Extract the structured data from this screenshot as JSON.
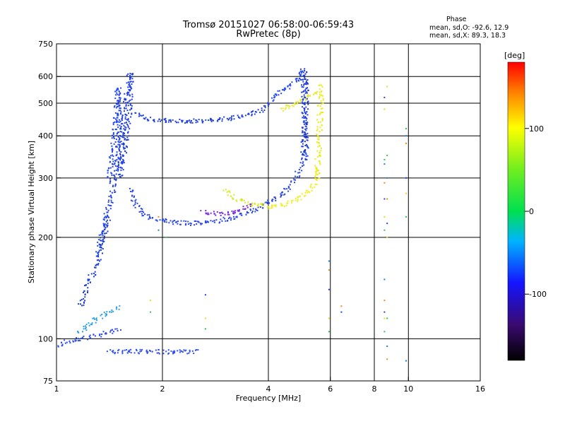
{
  "header": {
    "title": "Tromsø 20151027 06:58:00-06:59:43",
    "subtitle": "RwPretec (8p)",
    "phase_title": "Phase",
    "phase_o": "mean, sd,O: -92.6, 12.9",
    "phase_x": "mean, sd,X: 89.3, 18.3"
  },
  "colorbar": {
    "unit": "[deg]",
    "min": -180,
    "max": 180,
    "ticks": [
      100,
      0,
      -100
    ],
    "tick_labels": [
      "100",
      "0",
      "-100"
    ]
  },
  "chart_data": {
    "type": "scatter",
    "xlabel": "Frequency [MHz]",
    "ylabel": "Stationary phase Virtual Height [km]",
    "xscale": "log",
    "yscale": "log",
    "xlim": [
      1,
      16
    ],
    "ylim": [
      75,
      750
    ],
    "xticks": [
      1,
      2,
      4,
      6,
      8,
      10,
      16
    ],
    "xtick_labels": [
      "1",
      "2",
      "4",
      "6",
      "8",
      "10",
      "16"
    ],
    "yticks": [
      75,
      100,
      200,
      300,
      400,
      500,
      600,
      750
    ],
    "ytick_labels": [
      "75",
      "100",
      "200",
      "300",
      "400",
      "500",
      "600",
      "750"
    ],
    "xgrid": [
      2,
      4,
      6,
      8,
      10
    ],
    "ygrid": [
      100,
      200,
      300,
      400,
      500,
      600
    ],
    "series": [
      {
        "traces": [
          {
            "f": [
              1.3,
              1.33,
              1.36,
              1.39,
              1.42,
              1.45,
              1.47,
              1.49,
              1.5,
              1.5,
              1.49,
              1.46,
              1.42,
              1.4
            ],
            "h": [
              180,
              200,
              220,
              240,
              260,
              280,
              310,
              360,
              420,
              500,
              560,
              400,
              340,
              290
            ],
            "color": "#2244ee"
          },
          {
            "f": [
              1.5,
              1.53,
              1.56,
              1.58,
              1.6,
              1.61,
              1.62,
              1.61,
              1.59,
              1.56,
              1.53,
              1.5
            ],
            "h": [
              300,
              330,
              370,
              420,
              480,
              540,
              600,
              620,
              560,
              470,
              380,
              320
            ],
            "color": "#1e3ce6"
          },
          {
            "f": [
              1.16,
              1.18,
              1.21,
              1.24,
              1.27,
              1.3,
              1.33,
              1.36,
              1.4
            ],
            "h": [
              125,
              130,
              140,
              150,
              160,
              170,
              185,
              205,
              230
            ],
            "color": "#1a3bd8"
          },
          {
            "f": [
              1.0,
              1.05,
              1.1,
              1.15,
              1.2,
              1.25,
              1.3,
              1.35,
              1.4,
              1.45,
              1.5
            ],
            "h": [
              95,
              98,
              99,
              100,
              101,
              102,
              103,
              104,
              105,
              106,
              108
            ],
            "color": "#2f4fe8"
          },
          {
            "f": [
              1.15,
              1.2,
              1.25,
              1.3,
              1.35,
              1.4,
              1.45,
              1.5
            ],
            "h": [
              105,
              108,
              112,
              115,
              118,
              120,
              122,
              125
            ],
            "color": "#2fa0e0"
          },
          {
            "f": [
              1.4,
              1.45,
              1.5,
              1.55,
              1.6,
              1.65,
              1.7,
              1.8,
              1.9,
              2.0,
              2.1,
              2.2,
              2.3,
              2.4,
              2.5
            ],
            "h": [
              92,
              92,
              92,
              92,
              92,
              92,
              92,
              92,
              92,
              92,
              92,
              92,
              92,
              92,
              92
            ],
            "color": "#3050e8"
          },
          {
            "f": [
              1.65,
              1.7,
              1.75,
              1.8,
              1.9,
              2.0,
              2.1,
              2.2,
              2.4,
              2.6,
              2.8,
              3.0,
              3.2,
              3.4,
              3.6,
              3.8,
              3.9,
              4.0
            ],
            "h": [
              470,
              460,
              455,
              450,
              448,
              446,
              445,
              444,
              444,
              445,
              447,
              450,
              455,
              460,
              468,
              480,
              490,
              500
            ],
            "color": "#1f3fe0"
          },
          {
            "f": [
              1.62,
              1.65,
              1.7,
              1.75,
              1.8,
              1.9,
              2.0,
              2.2,
              2.4,
              2.6,
              2.8,
              3.0,
              3.2,
              3.4,
              3.6,
              3.8,
              4.0,
              4.2,
              4.4,
              4.6,
              4.8,
              5.0
            ],
            "h": [
              280,
              260,
              245,
              237,
              232,
              228,
              225,
              222,
              221,
              222,
              224,
              227,
              231,
              236,
              242,
              248,
              255,
              263,
              272,
              285,
              305,
              340
            ],
            "color": "#2a46e6"
          },
          {
            "f": [
              4.0,
              4.15,
              4.3,
              4.5,
              4.7,
              4.85,
              5.0,
              5.03,
              5.05,
              5.06,
              5.08,
              5.1
            ],
            "h": [
              500,
              520,
              540,
              560,
              580,
              600,
              630,
              550,
              480,
              430,
              380,
              340
            ],
            "color": "#2244ee"
          },
          {
            "f": [
              5.0,
              5.02,
              5.05,
              5.07,
              5.09,
              5.1,
              5.12
            ],
            "h": [
              340,
              380,
              430,
              480,
              540,
              600,
              640
            ],
            "color": "#1b36d0"
          },
          {
            "f": [
              3.0,
              3.1,
              3.2,
              3.3,
              3.4,
              3.5,
              3.6,
              3.7,
              3.8,
              3.9
            ],
            "h": [
              280,
              270,
              262,
              258,
              255,
              253,
              252,
              251,
              250,
              250
            ],
            "color": "#d8e82a"
          },
          {
            "f": [
              3.9,
              4.1,
              4.3,
              4.5,
              4.7,
              4.9,
              5.1,
              5.3,
              5.45,
              5.55
            ],
            "h": [
              245,
              247,
              250,
              254,
              258,
              264,
              272,
              285,
              300,
              320
            ],
            "color": "#f0ee20"
          },
          {
            "f": [
              5.45,
              5.5,
              5.53,
              5.56,
              5.58,
              5.6,
              5.62,
              5.64
            ],
            "h": [
              300,
              330,
              370,
              410,
              450,
              500,
              540,
              580
            ],
            "color": "#ecec1c"
          },
          {
            "f": [
              4.3,
              4.5,
              4.7,
              4.9,
              5.1,
              5.3,
              5.5
            ],
            "h": [
              480,
              490,
              500,
              510,
              520,
              530,
              540
            ],
            "color": "#e8ea28"
          },
          {
            "f": [
              2.6,
              2.8,
              3.0,
              3.2,
              3.4,
              3.6
            ],
            "h": [
              238,
              236,
              237,
              240,
              245,
              250
            ],
            "color": "#7a2bd8"
          }
        ],
        "isolated_points": [
          {
            "f": 8.55,
            "h": [
              520,
              480,
              340,
              330,
              290,
              260,
              230,
              210,
              150,
              130,
              120,
              115,
              105
            ]
          },
          {
            "f": 8.7,
            "h": [
              560,
              350,
              300,
              260,
              220,
              200,
              115,
              95,
              87
            ]
          },
          {
            "f": 9.85,
            "h": [
              420,
              400,
              380,
              300,
              270,
              230,
              86
            ]
          },
          {
            "f": 5.95,
            "h": [
              170,
              160,
              140,
              115,
              105
            ]
          },
          {
            "f": 6.45,
            "h": [
              125,
              120
            ]
          },
          {
            "f": 2.65,
            "h": [
              135,
              115,
              107
            ]
          },
          {
            "f": 1.85,
            "h": [
              130,
              120
            ]
          },
          {
            "f": 2.05,
            "h": [
              200
            ]
          },
          {
            "f": 1.95,
            "h": [
              210,
              230
            ]
          }
        ]
      }
    ]
  }
}
